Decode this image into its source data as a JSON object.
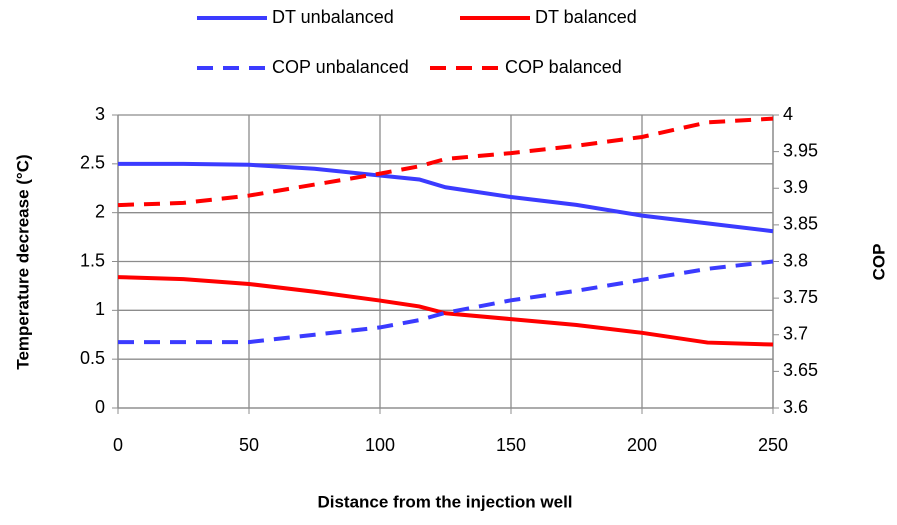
{
  "chart_data": {
    "type": "line",
    "x_label": "Distance from the injection well",
    "y_label": "Temperature decrease (°C)",
    "y2_label": "COP",
    "x": [
      0,
      25,
      50,
      75,
      100,
      115,
      125,
      150,
      175,
      200,
      225,
      250
    ],
    "series": [
      {
        "name": "DT unbalanced",
        "color": "#3b3bff",
        "dashed": false,
        "values": [
          2.5,
          2.5,
          2.49,
          2.45,
          2.38,
          2.34,
          2.26,
          2.16,
          2.08,
          1.97,
          1.89,
          1.81
        ]
      },
      {
        "name": "DT balanced",
        "color": "#ff0000",
        "dashed": false,
        "values": [
          1.34,
          1.32,
          1.27,
          1.19,
          1.1,
          1.04,
          0.97,
          0.91,
          0.85,
          0.77,
          0.67,
          0.65
        ]
      },
      {
        "name": "COP unbalanced",
        "color": "#3b3bff",
        "dashed": true,
        "axis": "y2",
        "values": [
          3.69,
          3.69,
          3.69,
          3.7,
          3.71,
          3.72,
          3.73,
          3.747,
          3.76,
          3.775,
          3.79,
          3.8
        ]
      },
      {
        "name": "COP balanced",
        "color": "#ff0000",
        "dashed": true,
        "axis": "y2",
        "values": [
          3.877,
          3.88,
          3.89,
          3.905,
          3.92,
          3.93,
          3.94,
          3.948,
          3.958,
          3.97,
          3.99,
          3.995
        ]
      }
    ],
    "xlim": [
      0,
      250
    ],
    "xticks": [
      0,
      50,
      100,
      150,
      200,
      250
    ],
    "ylim": [
      0,
      3
    ],
    "yticks": [
      0,
      0.5,
      1,
      1.5,
      2,
      2.5,
      3
    ],
    "y2lim": [
      3.6,
      4
    ],
    "y2ticks": [
      3.6,
      3.65,
      3.7,
      3.75,
      3.8,
      3.85,
      3.9,
      3.95,
      4
    ],
    "grid": true,
    "legend": "top"
  }
}
